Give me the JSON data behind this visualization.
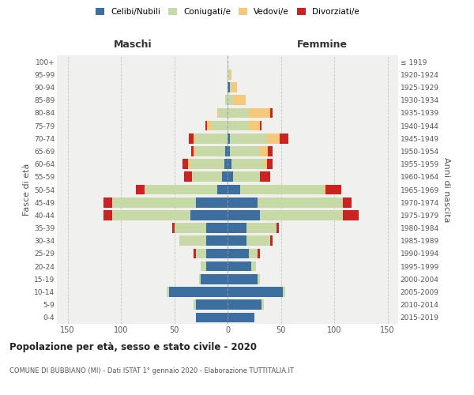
{
  "age_groups": [
    "0-4",
    "5-9",
    "10-14",
    "15-19",
    "20-24",
    "25-29",
    "30-34",
    "35-39",
    "40-44",
    "45-49",
    "50-54",
    "55-59",
    "60-64",
    "65-69",
    "70-74",
    "75-79",
    "80-84",
    "85-89",
    "90-94",
    "95-99",
    "100+"
  ],
  "birth_years": [
    "2015-2019",
    "2010-2014",
    "2005-2009",
    "2000-2004",
    "1995-1999",
    "1990-1994",
    "1985-1989",
    "1980-1984",
    "1975-1979",
    "1970-1974",
    "1965-1969",
    "1960-1964",
    "1955-1959",
    "1950-1954",
    "1945-1949",
    "1940-1944",
    "1935-1939",
    "1930-1934",
    "1925-1929",
    "1920-1924",
    "≤ 1919"
  ],
  "male": {
    "celibe": [
      30,
      30,
      55,
      25,
      20,
      20,
      20,
      20,
      35,
      30,
      10,
      5,
      3,
      2,
      0,
      0,
      0,
      0,
      0,
      0,
      0
    ],
    "coniugato": [
      0,
      2,
      2,
      2,
      5,
      10,
      25,
      30,
      73,
      78,
      68,
      28,
      32,
      28,
      30,
      15,
      8,
      2,
      0,
      0,
      0
    ],
    "vedovo": [
      0,
      0,
      0,
      0,
      0,
      0,
      0,
      0,
      0,
      0,
      0,
      0,
      2,
      2,
      2,
      4,
      2,
      0,
      0,
      0,
      0
    ],
    "divorziato": [
      0,
      0,
      0,
      0,
      0,
      2,
      0,
      2,
      8,
      8,
      8,
      8,
      5,
      2,
      4,
      2,
      0,
      0,
      0,
      0,
      0
    ]
  },
  "female": {
    "nubile": [
      25,
      32,
      52,
      28,
      22,
      20,
      18,
      18,
      30,
      28,
      12,
      5,
      4,
      2,
      2,
      0,
      0,
      0,
      2,
      0,
      0
    ],
    "coniugata": [
      0,
      2,
      2,
      2,
      5,
      8,
      22,
      28,
      78,
      80,
      78,
      25,
      30,
      28,
      35,
      20,
      20,
      5,
      2,
      2,
      0
    ],
    "vedova": [
      0,
      0,
      0,
      0,
      0,
      0,
      0,
      0,
      0,
      0,
      2,
      0,
      3,
      8,
      12,
      10,
      20,
      12,
      5,
      2,
      0
    ],
    "divorziata": [
      0,
      0,
      0,
      0,
      0,
      2,
      2,
      2,
      15,
      8,
      15,
      10,
      5,
      4,
      8,
      2,
      2,
      0,
      0,
      0,
      0
    ]
  },
  "colors": {
    "celibe": "#3d6ea0",
    "coniugato": "#c8d9a8",
    "vedovo": "#f5c87a",
    "divorziato": "#cc2222"
  },
  "legend_labels": [
    "Celibi/Nubili",
    "Coniugati/e",
    "Vedovi/e",
    "Divorziati/e"
  ],
  "title": "Popolazione per età, sesso e stato civile - 2020",
  "subtitle": "COMUNE DI BUBBIANO (MI) - Dati ISTAT 1° gennaio 2020 - Elaborazione TUTTITALIA.IT",
  "xlabel_left": "Maschi",
  "xlabel_right": "Femmine",
  "ylabel_left": "Fasce di età",
  "ylabel_right": "Anni di nascita",
  "xlim": 160
}
